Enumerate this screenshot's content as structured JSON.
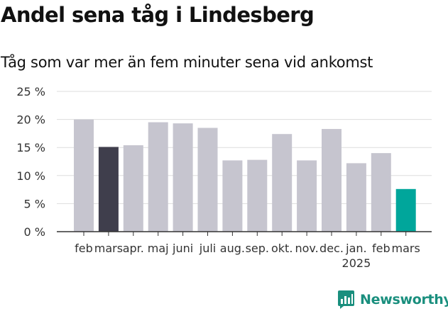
{
  "title": "Andel sena tåg i Lindesberg",
  "subtitle": "Tåg som var mer än fem minuter sena vid ankomst",
  "brand": {
    "name": "Newsworthy",
    "icon": "newsworthy-logo-icon"
  },
  "colors": {
    "default_bar": "#c6c5cf",
    "highlight_previous_year": "#3f3e4c",
    "highlight_latest": "#00a69b",
    "grid": "#dddddd",
    "axis": "#333333",
    "text": "#111111"
  },
  "chart_data": {
    "type": "bar",
    "categories": [
      "feb",
      "mars",
      "apr.",
      "maj",
      "juni",
      "juli",
      "aug.",
      "sep.",
      "okt.",
      "nov.",
      "dec.",
      "jan.",
      "feb",
      "mars"
    ],
    "year_label": {
      "text": "2025",
      "under_category_index": 11
    },
    "values": [
      20.0,
      15.1,
      15.4,
      19.5,
      19.3,
      18.5,
      12.7,
      12.8,
      17.4,
      12.7,
      18.3,
      12.2,
      14.0,
      7.6
    ],
    "bar_colors": [
      "default_bar",
      "highlight_previous_year",
      "default_bar",
      "default_bar",
      "default_bar",
      "default_bar",
      "default_bar",
      "default_bar",
      "default_bar",
      "default_bar",
      "default_bar",
      "default_bar",
      "default_bar",
      "highlight_latest"
    ],
    "yticks": [
      {
        "value": 0,
        "label": "0 %"
      },
      {
        "value": 5,
        "label": "5 %"
      },
      {
        "value": 10,
        "label": "10 %"
      },
      {
        "value": 15,
        "label": "15 %"
      },
      {
        "value": 20,
        "label": "20 %"
      },
      {
        "value": 25,
        "label": "25 %"
      }
    ],
    "ylim": [
      0,
      25
    ],
    "xlabel": "",
    "ylabel": "",
    "grid": true,
    "legend": "none"
  }
}
